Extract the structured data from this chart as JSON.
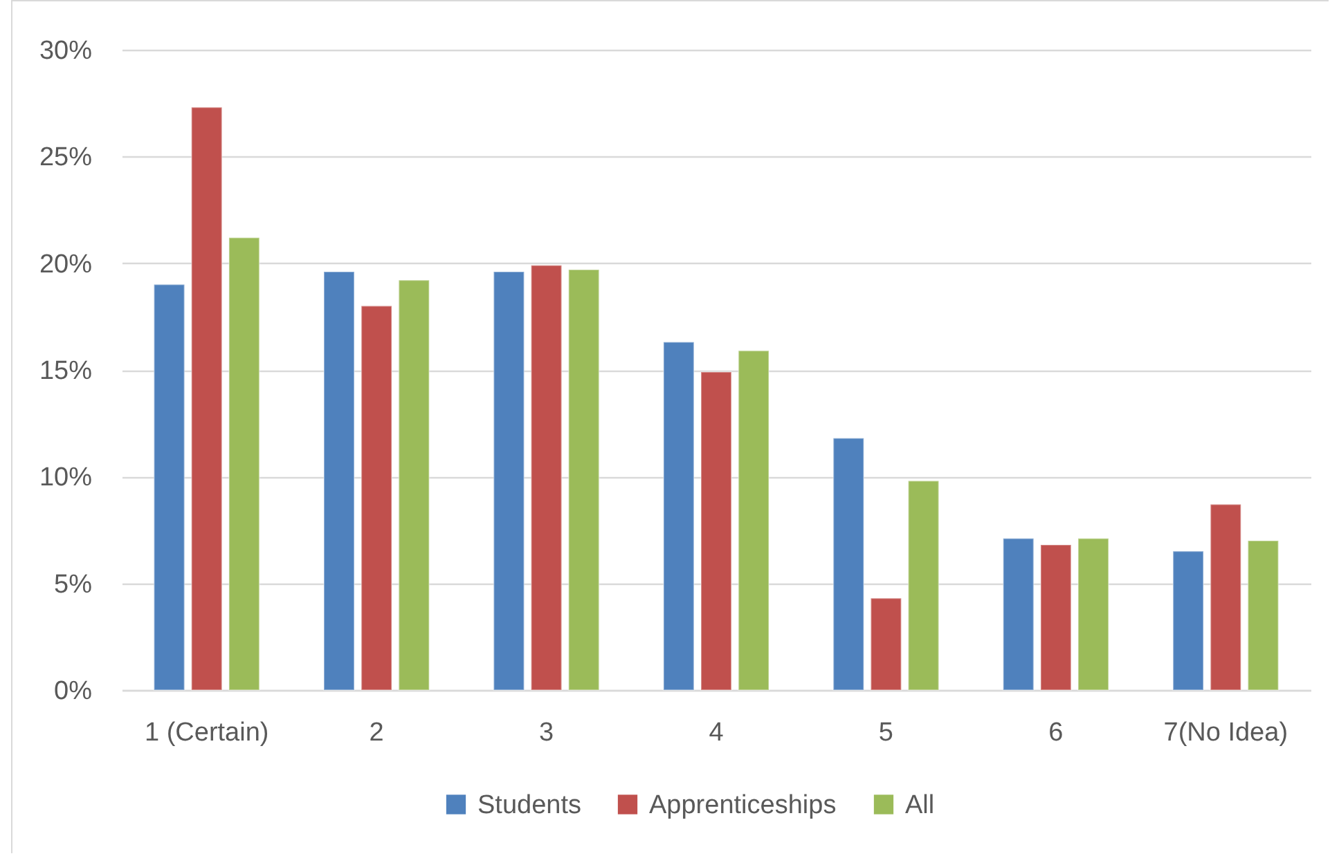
{
  "chart_data": {
    "type": "bar",
    "categories": [
      "1 (Certain)",
      "2",
      "3",
      "4",
      "5",
      "6",
      "7(No Idea)"
    ],
    "series": [
      {
        "name": "Students",
        "color": "#4f81bd",
        "values": [
          19.0,
          19.6,
          19.6,
          16.3,
          11.8,
          7.1,
          6.5
        ]
      },
      {
        "name": "Apprenticeships",
        "color": "#c0504d",
        "values": [
          27.3,
          18.0,
          19.9,
          14.9,
          4.3,
          6.8,
          8.7
        ]
      },
      {
        "name": "All",
        "color": "#9bbb59",
        "values": [
          21.2,
          19.2,
          19.7,
          15.9,
          9.8,
          7.1,
          7.0
        ]
      }
    ],
    "ylim": [
      0,
      30
    ],
    "yticks": [
      {
        "value": 0,
        "label": "0%"
      },
      {
        "value": 5,
        "label": "5%"
      },
      {
        "value": 10,
        "label": "10%"
      },
      {
        "value": 15,
        "label": "15%"
      },
      {
        "value": 20,
        "label": "20%"
      },
      {
        "value": 25,
        "label": "25%"
      },
      {
        "value": 30,
        "label": "30%"
      }
    ],
    "grid": "y",
    "legend": "bottom"
  }
}
